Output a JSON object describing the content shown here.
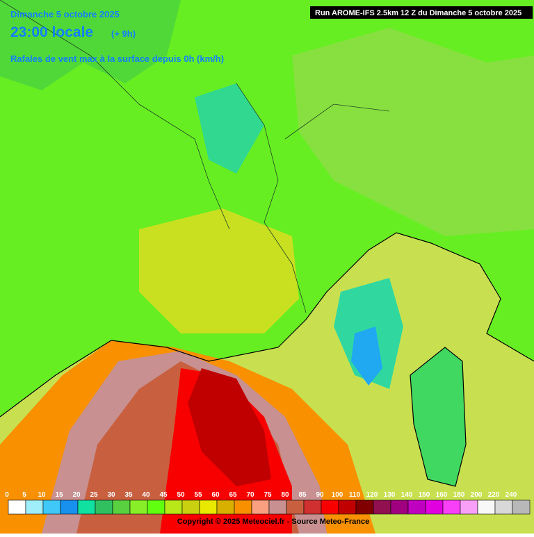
{
  "header": {
    "date": "Dimanche 5 octobre 2025",
    "time": "23:00 locale",
    "offset": "(+ 9h)",
    "subtitle": "Rafales de vent max à la surface depuis 0h (km/h)",
    "run": "Run AROME-IFS 2.5km 12 Z du Dimanche 5 octobre 2025"
  },
  "legend": {
    "labels": [
      0,
      5,
      10,
      15,
      20,
      25,
      30,
      35,
      40,
      45,
      50,
      55,
      60,
      65,
      70,
      75,
      80,
      85,
      90,
      100,
      110,
      120,
      130,
      140,
      150,
      160,
      180,
      200,
      220,
      240
    ],
    "colors": [
      "#ffffff",
      "#a0eefa",
      "#40c8f8",
      "#1890ee",
      "#10e0a0",
      "#30c060",
      "#58d040",
      "#88ee28",
      "#60ff10",
      "#b8e818",
      "#c8d010",
      "#e8e800",
      "#d8b000",
      "#f89000",
      "#f8a080",
      "#c89090",
      "#c86040",
      "#d03030",
      "#f80000",
      "#c00000",
      "#800000",
      "#901050",
      "#a00080",
      "#c000c0",
      "#e000e0",
      "#f840f8",
      "#f8a0f8",
      "#f8f8f8",
      "#d8d8d8",
      "#b8b8b8"
    ]
  },
  "footer": {
    "copyright": "Copyright © 2025 Meteociel.fr - Source Meteo-France"
  }
}
